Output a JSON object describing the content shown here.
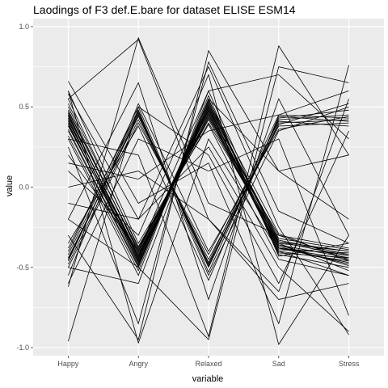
{
  "chart_data": {
    "type": "line",
    "title": "Laodings of F3 def.E.bare for dataset ELISE ESM14",
    "xlabel": "variable",
    "ylabel": "value",
    "categories": [
      "Happy",
      "Angry",
      "Relaxed",
      "Sad",
      "Stress"
    ],
    "ylim": [
      -1.05,
      1.05
    ],
    "yticks": [
      -1.0,
      -0.5,
      0.0,
      0.5,
      1.0
    ],
    "ytick_labels": [
      "-1.0",
      "-0.5",
      "0.0",
      "0.5",
      "1.0"
    ],
    "grid": true,
    "legend": "none",
    "colors": {
      "panel": "#ebebeb",
      "grid": "#ffffff",
      "line": "#000000"
    },
    "series": [
      {
        "values": [
          0.45,
          -0.44,
          0.48,
          -0.38,
          -0.45
        ]
      },
      {
        "values": [
          0.42,
          -0.46,
          0.5,
          -0.33,
          -0.42
        ]
      },
      {
        "values": [
          0.48,
          -0.4,
          0.45,
          -0.37,
          -0.48
        ]
      },
      {
        "values": [
          0.4,
          -0.48,
          0.52,
          -0.35,
          -0.4
        ]
      },
      {
        "values": [
          0.44,
          -0.42,
          0.47,
          -0.4,
          -0.46
        ]
      },
      {
        "values": [
          0.46,
          -0.45,
          0.49,
          -0.36,
          -0.44
        ]
      },
      {
        "values": [
          0.43,
          -0.47,
          0.46,
          -0.39,
          -0.41
        ]
      },
      {
        "values": [
          0.38,
          -0.44,
          0.53,
          -0.34,
          -0.43
        ]
      },
      {
        "values": [
          0.5,
          -0.41,
          0.44,
          -0.38,
          -0.47
        ]
      },
      {
        "values": [
          0.41,
          -0.43,
          0.51,
          -0.32,
          -0.39
        ]
      },
      {
        "values": [
          0.35,
          -0.5,
          0.55,
          -0.42,
          -0.5
        ]
      },
      {
        "values": [
          0.47,
          -0.39,
          0.43,
          -0.3,
          -0.38
        ]
      },
      {
        "values": [
          0.55,
          -0.38,
          0.42,
          -0.35,
          -0.52
        ]
      },
      {
        "values": [
          0.32,
          -0.52,
          0.57,
          -0.43,
          -0.35
        ]
      },
      {
        "values": [
          0.39,
          -0.46,
          0.48,
          -0.36,
          -0.49
        ]
      },
      {
        "values": [
          0.45,
          -0.43,
          0.5,
          -0.41,
          -0.44
        ]
      },
      {
        "values": [
          0.52,
          -0.37,
          0.4,
          -0.34,
          -0.4
        ]
      },
      {
        "values": [
          0.36,
          -0.49,
          0.54,
          -0.29,
          -0.46
        ]
      },
      {
        "values": [
          0.6,
          -0.35,
          0.39,
          -0.45,
          -0.55
        ]
      },
      {
        "values": [
          0.3,
          -0.55,
          0.6,
          -0.38,
          -0.42
        ]
      },
      {
        "values": [
          -0.45,
          0.45,
          -0.48,
          0.4,
          0.42
        ]
      },
      {
        "values": [
          -0.42,
          0.47,
          -0.5,
          0.42,
          0.45
        ]
      },
      {
        "values": [
          -0.48,
          0.42,
          -0.45,
          0.38,
          0.4
        ]
      },
      {
        "values": [
          -0.4,
          0.5,
          -0.53,
          0.43,
          0.48
        ]
      },
      {
        "values": [
          -0.44,
          0.44,
          -0.47,
          0.45,
          0.43
        ]
      },
      {
        "values": [
          -0.38,
          0.48,
          -0.55,
          0.35,
          0.5
        ]
      },
      {
        "values": [
          -0.5,
          0.4,
          -0.42,
          0.41,
          0.38
        ]
      },
      {
        "values": [
          -0.46,
          0.46,
          -0.49,
          0.39,
          0.52
        ]
      },
      {
        "values": [
          -0.55,
          0.52,
          -0.4,
          0.36,
          0.44
        ]
      },
      {
        "values": [
          -0.35,
          0.38,
          -0.58,
          0.44,
          0.41
        ]
      },
      {
        "values": [
          -0.62,
          0.93,
          -0.1,
          -0.3,
          -0.45
        ]
      },
      {
        "values": [
          0.55,
          0.92,
          -0.2,
          -0.7,
          -0.6
        ]
      },
      {
        "values": [
          -0.3,
          -0.95,
          0.85,
          0.1,
          -0.2
        ]
      },
      {
        "values": [
          0.6,
          -0.97,
          0.3,
          -0.4,
          -0.55
        ]
      },
      {
        "values": [
          0.3,
          0.2,
          -0.93,
          0.88,
          0.2
        ]
      },
      {
        "values": [
          -0.2,
          -0.5,
          -0.95,
          0.75,
          0.65
        ]
      },
      {
        "values": [
          0.1,
          -0.3,
          0.7,
          -0.98,
          -0.3
        ]
      },
      {
        "values": [
          -0.96,
          0.5,
          0.2,
          -0.6,
          0.35
        ]
      },
      {
        "values": [
          0.66,
          -0.1,
          0.15,
          -0.85,
          0.76
        ]
      },
      {
        "values": [
          0.58,
          -0.2,
          0.75,
          -0.25,
          -0.92
        ]
      },
      {
        "values": [
          -0.1,
          -0.2,
          0.25,
          -0.5,
          -0.9
        ]
      },
      {
        "values": [
          0.2,
          -0.4,
          0.6,
          0.7,
          0.3
        ]
      },
      {
        "values": [
          -0.6,
          0.3,
          0.1,
          0.3,
          -0.8
        ]
      },
      {
        "values": [
          -0.5,
          -0.6,
          0.55,
          0.1,
          0.2
        ]
      },
      {
        "values": [
          0.0,
          0.1,
          -0.2,
          -0.65,
          0.55
        ]
      },
      {
        "values": [
          0.25,
          -0.85,
          0.78,
          -0.15,
          -0.35
        ]
      },
      {
        "values": [
          -0.2,
          0.65,
          -0.7,
          0.55,
          -0.3
        ]
      },
      {
        "values": [
          0.15,
          0.05,
          0.35,
          0.45,
          0.6
        ]
      }
    ]
  }
}
